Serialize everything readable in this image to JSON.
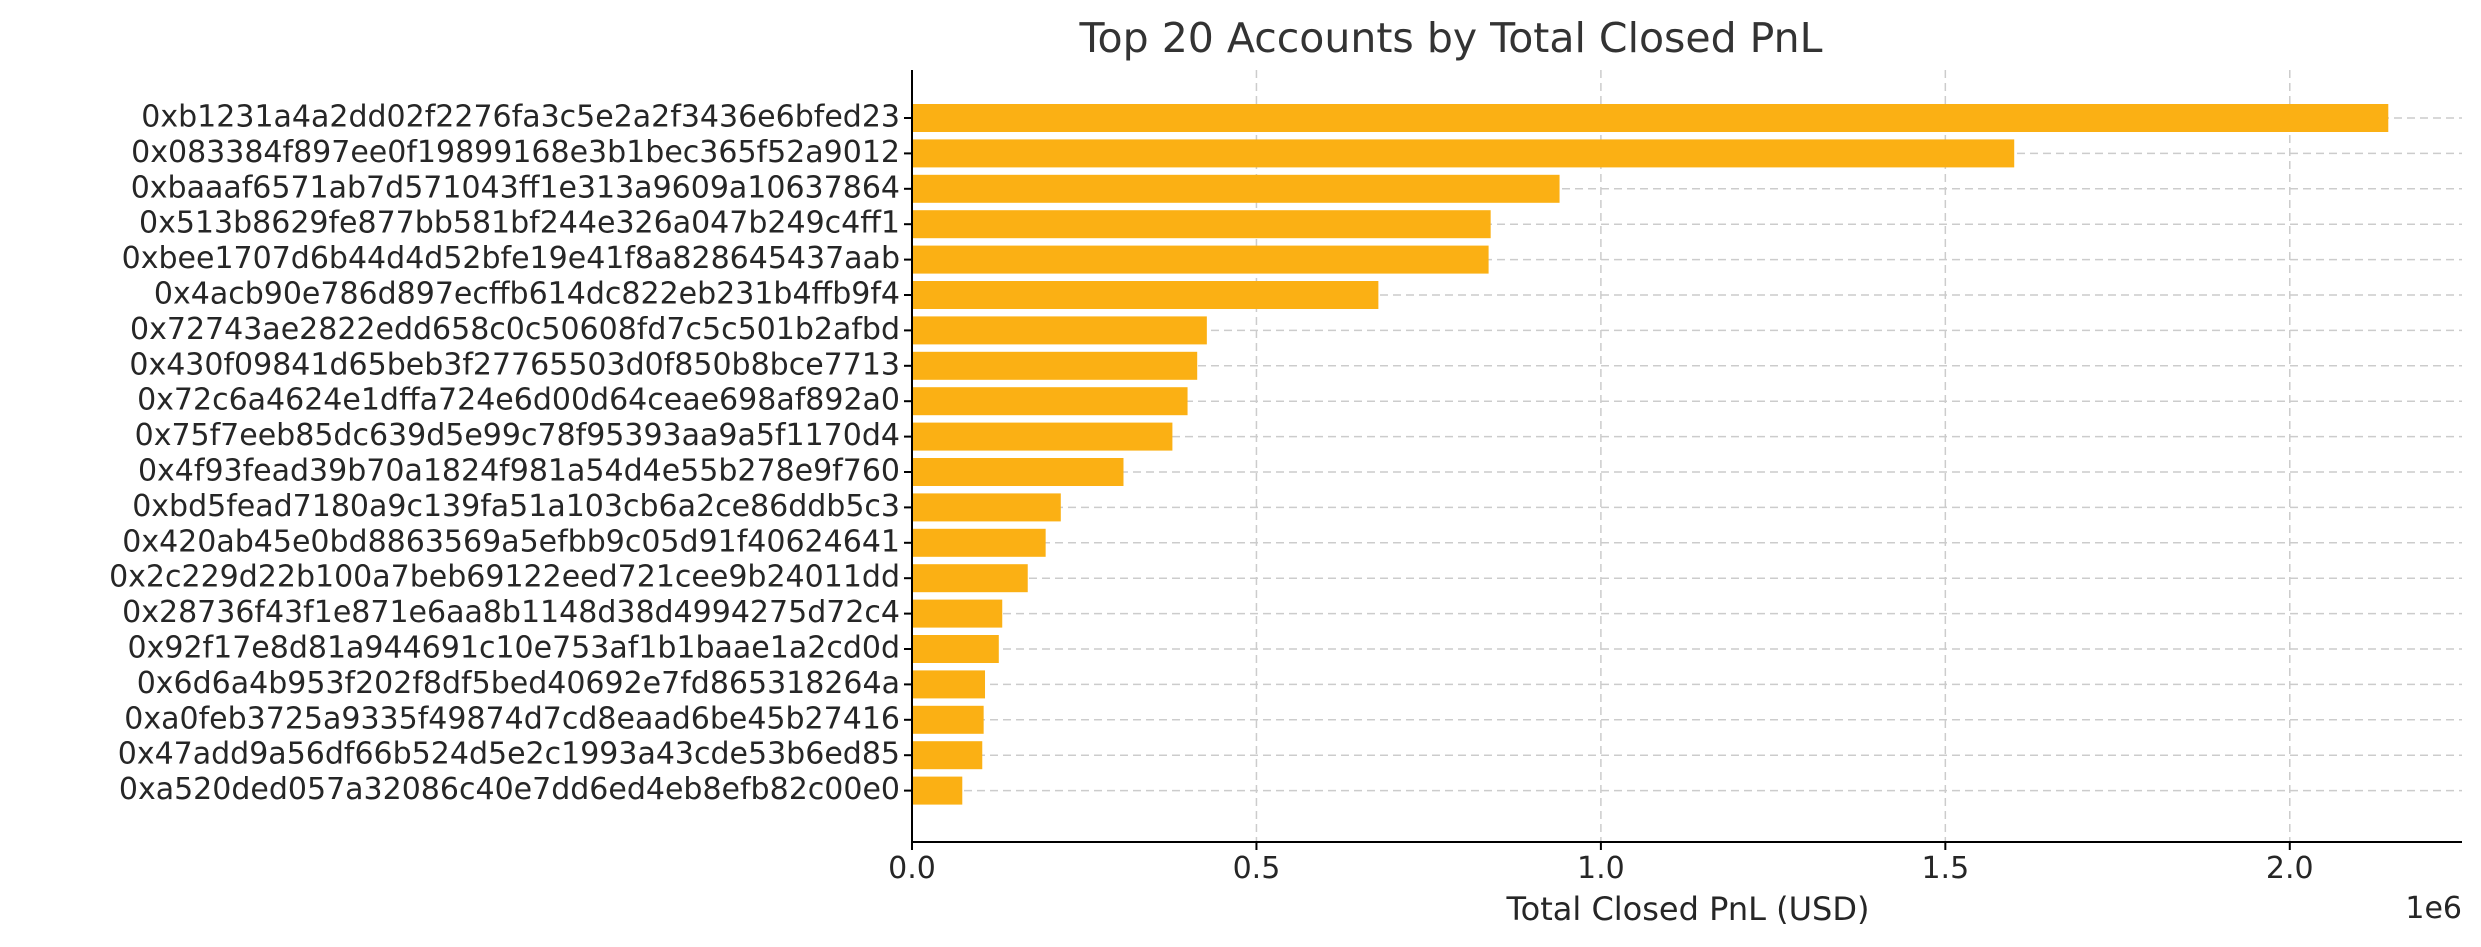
{
  "chart_data": {
    "type": "bar",
    "orientation": "horizontal",
    "title": "Top 20 Accounts by Total Closed PnL",
    "xlabel": "Total Closed PnL (USD)",
    "ylabel": "",
    "offset_label": "1e6",
    "xlim": [
      0,
      2250000
    ],
    "xticks": [
      0,
      500000,
      1000000,
      1500000,
      2000000
    ],
    "xtick_labels": [
      "0.0",
      "0.5",
      "1.0",
      "1.5",
      "2.0"
    ],
    "grid": true,
    "bar_color": "#fbb014",
    "categories": [
      "0xb1231a4a2dd02f2276fa3c5e2a2f3436e6bfed23",
      "0x083384f897ee0f19899168e3b1bec365f52a9012",
      "0xbaaaf6571ab7d571043ff1e313a9609a10637864",
      "0x513b8629fe877bb581bf244e326a047b249c4ff1",
      "0xbee1707d6b44d4d52bfe19e41f8a828645437aab",
      "0x4acb90e786d897ecffb614dc822eb231b4ffb9f4",
      "0x72743ae2822edd658c0c50608fd7c5c501b2afbd",
      "0x430f09841d65beb3f27765503d0f850b8bce7713",
      "0x72c6a4624e1dffa724e6d00d64ceae698af892a0",
      "0x75f7eeb85dc639d5e99c78f95393aa9a5f1170d4",
      "0x4f93fead39b70a1824f981a54d4e55b278e9f760",
      "0xbd5fead7180a9c139fa51a103cb6a2ce86ddb5c3",
      "0x420ab45e0bd8863569a5efbb9c05d91f40624641",
      "0x2c229d22b100a7beb69122eed721cee9b24011dd",
      "0x28736f43f1e871e6aa8b1148d38d4994275d72c4",
      "0x92f17e8d81a944691c10e753af1b1baae1a2cd0d",
      "0x6d6a4b953f202f8df5bed40692e7fd865318264a",
      "0xa0feb3725a9335f49874d7cd8eaad6be45b27416",
      "0x47add9a56df66b524d5e2c1993a43cde53b6ed85",
      "0xa520ded057a32086c40e7dd6ed4eb8efb82c00e0"
    ],
    "values": [
      2143000,
      1600000,
      940000,
      840000,
      837000,
      677000,
      428000,
      414000,
      400000,
      378000,
      307000,
      216000,
      194000,
      168000,
      131000,
      126000,
      106000,
      104000,
      102000,
      73000
    ]
  }
}
